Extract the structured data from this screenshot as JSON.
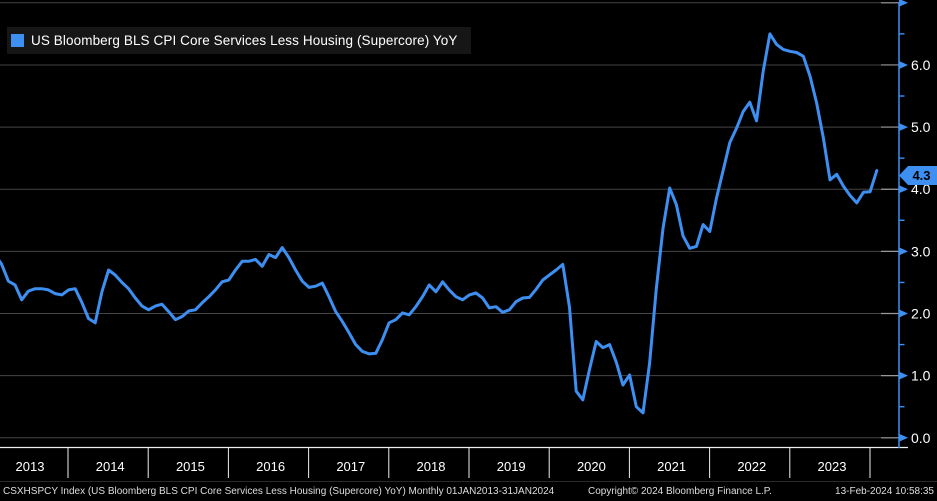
{
  "window": {
    "background": "#000000"
  },
  "legend": {
    "label": "US Bloomberg BLS CPI Core Services Less Housing (Supercore) YoY",
    "swatch_color": "#3d8ff2"
  },
  "y_axis": {
    "tick_labels": [
      "0.0",
      "1.0",
      "2.0",
      "3.0",
      "4.0",
      "5.0",
      "6.0"
    ],
    "last_value_label": "4.3"
  },
  "x_axis": {
    "year_labels": [
      "2013",
      "2014",
      "2015",
      "2016",
      "2017",
      "2018",
      "2019",
      "2020",
      "2021",
      "2022",
      "2023"
    ]
  },
  "status_bar": {
    "left": "CSXHSPCY Index (US Bloomberg BLS CPI Core Services Less Housing (Supercore) YoY)  Monthly 01JAN2013-31JAN2024",
    "center": "Copyright© 2024 Bloomberg Finance L.P.",
    "right": "13-Feb-2024 10:58:35"
  },
  "chart_data": {
    "type": "line",
    "title": "US Bloomberg BLS CPI Core Services Less Housing (Supercore) YoY",
    "frequency": "Monthly",
    "x_range": "01JAN2013-31JAN2024",
    "x_tick_labels": [
      "2013",
      "2014",
      "2015",
      "2016",
      "2017",
      "2018",
      "2019",
      "2020",
      "2021",
      "2022",
      "2023"
    ],
    "y_ticks": [
      0.0,
      1.0,
      2.0,
      3.0,
      4.0,
      5.0,
      6.0
    ],
    "ylim": [
      0,
      7.05
    ],
    "grid": "horizontal",
    "legend_position": "top-left",
    "line_color": "#3d8ff2",
    "grid_color": "#454545",
    "last_value": 4.3,
    "series": [
      {
        "name": "US Bloomberg BLS CPI Core Services Less Housing (Supercore) YoY",
        "x_start": "2013-01",
        "x_step_months": 1,
        "values": [
          2.95,
          2.79,
          2.52,
          2.46,
          2.22,
          2.36,
          2.4,
          2.4,
          2.38,
          2.32,
          2.3,
          2.38,
          2.4,
          2.18,
          1.92,
          1.85,
          2.35,
          2.7,
          2.62,
          2.5,
          2.4,
          2.25,
          2.12,
          2.06,
          2.12,
          2.15,
          2.03,
          1.9,
          1.95,
          2.04,
          2.06,
          2.17,
          2.27,
          2.38,
          2.51,
          2.54,
          2.7,
          2.84,
          2.84,
          2.87,
          2.76,
          2.95,
          2.9,
          3.06,
          2.9,
          2.7,
          2.52,
          2.42,
          2.44,
          2.49,
          2.27,
          2.03,
          1.87,
          1.69,
          1.5,
          1.39,
          1.35,
          1.36,
          1.58,
          1.85,
          1.9,
          2.01,
          1.98,
          2.11,
          2.27,
          2.46,
          2.35,
          2.51,
          2.38,
          2.27,
          2.22,
          2.3,
          2.33,
          2.25,
          2.09,
          2.11,
          2.02,
          2.06,
          2.19,
          2.25,
          2.26,
          2.39,
          2.54,
          2.62,
          2.7,
          2.79,
          2.1,
          0.75,
          0.61,
          1.1,
          1.55,
          1.45,
          1.5,
          1.22,
          0.85,
          1.01,
          0.5,
          0.4,
          1.2,
          2.4,
          3.37,
          4.02,
          3.75,
          3.25,
          3.05,
          3.08,
          3.43,
          3.32,
          3.85,
          4.3,
          4.75,
          4.98,
          5.25,
          5.4,
          5.1,
          5.9,
          6.5,
          6.33,
          6.25,
          6.22,
          6.2,
          6.14,
          5.82,
          5.39,
          4.83,
          4.15,
          4.24,
          4.05,
          3.9,
          3.78,
          3.95,
          3.96,
          4.3
        ]
      }
    ]
  }
}
